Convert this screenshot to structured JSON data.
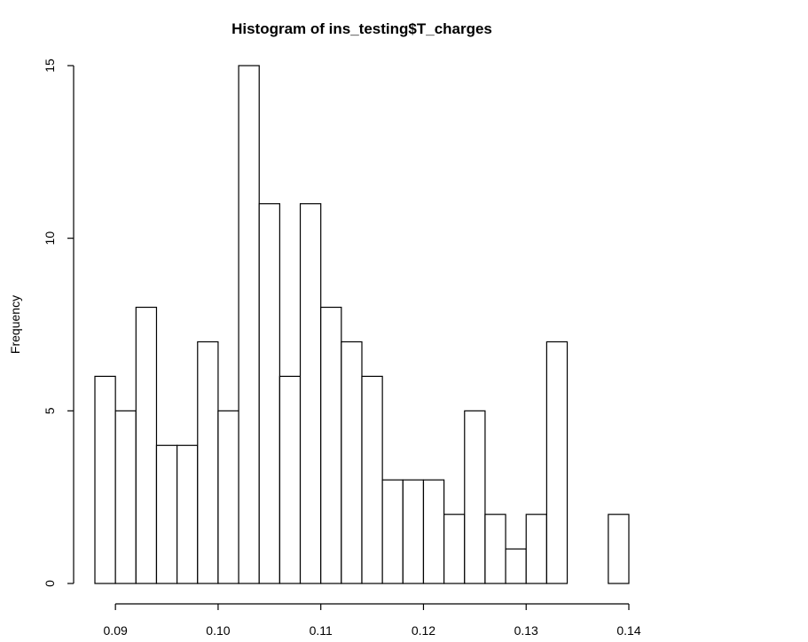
{
  "chart_data": {
    "type": "bar",
    "title": "Histogram of ins_testing$T_charges",
    "xlabel": "",
    "ylabel": "Frequency",
    "xlim": [
      0.088,
      0.14
    ],
    "ylim": [
      0,
      15
    ],
    "bin_width": 0.002,
    "bin_start": 0.088,
    "values": [
      6,
      5,
      8,
      4,
      4,
      7,
      5,
      15,
      11,
      6,
      11,
      8,
      7,
      6,
      3,
      3,
      3,
      2,
      5,
      2,
      1,
      2,
      7,
      0,
      0,
      2
    ],
    "x_ticks": [
      "0.09",
      "0.10",
      "0.11",
      "0.12",
      "0.13",
      "0.14"
    ],
    "x_tick_values": [
      0.09,
      0.1,
      0.11,
      0.12,
      0.13,
      0.14
    ],
    "y_ticks": [
      "0",
      "5",
      "10",
      "15"
    ],
    "y_tick_values": [
      0,
      5,
      10,
      15
    ],
    "grid": false,
    "colors": {
      "bar_fill": "#ffffff",
      "bar_stroke": "#000000"
    }
  }
}
